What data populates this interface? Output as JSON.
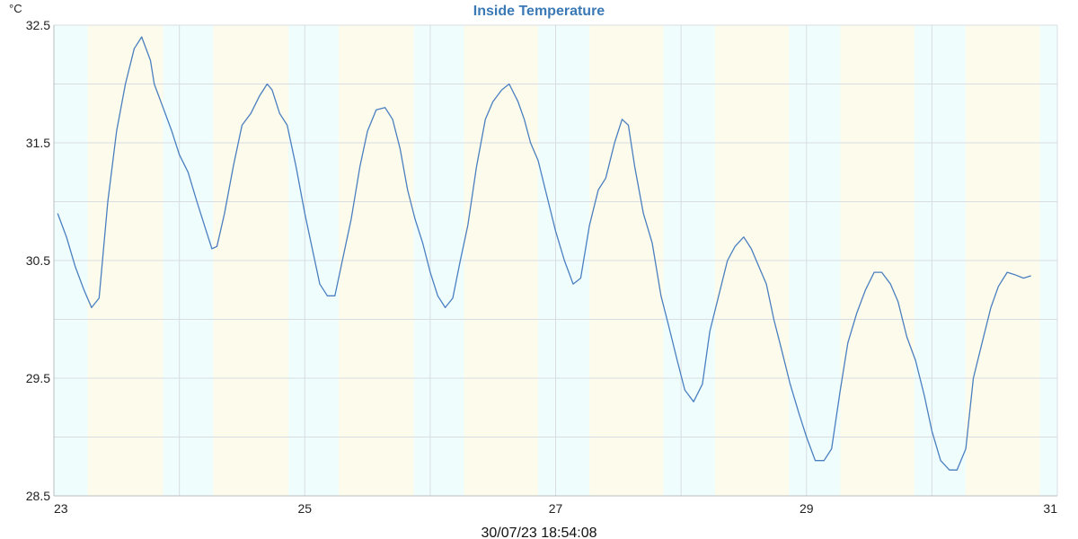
{
  "chart_data": {
    "type": "line",
    "title": "Inside Temperature",
    "unit": "°C",
    "timestamp": "30/07/23 18:54:08",
    "xlim": [
      23,
      31
    ],
    "ylim": [
      28.5,
      32.5
    ],
    "x_ticks": [
      23,
      25,
      27,
      29,
      31
    ],
    "x_tick_labels": [
      "23",
      "25",
      "27",
      "29",
      "31"
    ],
    "y_ticks": [
      28.5,
      29.5,
      30.5,
      31.5,
      32.5
    ],
    "y_tick_labels": [
      "28.5",
      "29.5",
      "30.5",
      "31.5",
      "32.5"
    ],
    "grid": true,
    "day_night_bands": [
      {
        "from": 23.0,
        "to": 23.27,
        "period": "night"
      },
      {
        "from": 23.27,
        "to": 23.87,
        "period": "day"
      },
      {
        "from": 23.87,
        "to": 24.27,
        "period": "night"
      },
      {
        "from": 24.27,
        "to": 24.87,
        "period": "day"
      },
      {
        "from": 24.87,
        "to": 25.27,
        "period": "night"
      },
      {
        "from": 25.27,
        "to": 25.87,
        "period": "day"
      },
      {
        "from": 25.87,
        "to": 26.27,
        "period": "night"
      },
      {
        "from": 26.27,
        "to": 26.86,
        "period": "day"
      },
      {
        "from": 26.86,
        "to": 27.27,
        "period": "night"
      },
      {
        "from": 27.27,
        "to": 27.86,
        "period": "day"
      },
      {
        "from": 27.86,
        "to": 28.27,
        "period": "night"
      },
      {
        "from": 28.27,
        "to": 28.86,
        "period": "day"
      },
      {
        "from": 28.86,
        "to": 29.27,
        "period": "night"
      },
      {
        "from": 29.27,
        "to": 29.86,
        "period": "day"
      },
      {
        "from": 29.86,
        "to": 30.27,
        "period": "night"
      },
      {
        "from": 30.27,
        "to": 30.86,
        "period": "day"
      },
      {
        "from": 30.86,
        "to": 31.0,
        "period": "night"
      }
    ],
    "colors": {
      "line": "#4a7fc0",
      "title": "#3a79b5",
      "day_band": "#fdfbeb",
      "night_band": "#effdfd",
      "grid": "#d9dde2"
    },
    "series": [
      {
        "x": [
          23.03,
          23.1,
          23.17,
          23.24,
          23.3,
          23.36,
          23.43,
          23.5,
          23.57,
          23.64,
          23.7,
          23.77,
          23.8,
          23.87,
          23.94,
          24.0,
          24.07,
          24.14,
          24.2,
          24.26,
          24.3,
          24.36,
          24.43,
          24.5,
          24.57,
          24.64,
          24.7,
          24.74,
          24.8,
          24.86,
          24.93,
          25.0,
          25.06,
          25.12,
          25.18,
          25.24,
          25.3,
          25.37,
          25.44,
          25.5,
          25.57,
          25.64,
          25.7,
          25.76,
          25.82,
          25.88,
          25.94,
          26.0,
          26.06,
          26.12,
          26.18,
          26.24,
          26.3,
          26.37,
          26.44,
          26.5,
          26.57,
          26.63,
          26.7,
          26.75,
          26.8,
          26.86,
          26.93,
          27.0,
          27.07,
          27.14,
          27.2,
          27.27,
          27.34,
          27.4,
          27.47,
          27.53,
          27.58,
          27.63,
          27.7,
          27.77,
          27.84,
          27.9,
          27.97,
          28.03,
          28.1,
          28.17,
          28.23,
          28.3,
          28.37,
          28.43,
          28.5,
          28.56,
          28.62,
          28.68,
          28.74,
          28.8,
          28.87,
          28.94,
          29.0,
          29.07,
          29.14,
          29.2,
          29.27,
          29.33,
          29.4,
          29.47,
          29.54,
          29.6,
          29.67,
          29.73,
          29.8,
          29.87,
          29.94,
          30.0,
          30.07,
          30.14,
          30.2,
          30.27,
          30.33,
          30.4,
          30.47,
          30.53,
          30.6,
          30.66,
          30.73,
          30.79
        ],
        "y": [
          30.9,
          30.7,
          30.45,
          30.25,
          30.1,
          30.18,
          31.0,
          31.6,
          32.0,
          32.3,
          32.4,
          32.2,
          32.0,
          31.8,
          31.6,
          31.4,
          31.25,
          31.0,
          30.8,
          30.6,
          30.62,
          30.9,
          31.3,
          31.65,
          31.75,
          31.9,
          32.0,
          31.95,
          31.75,
          31.65,
          31.3,
          30.9,
          30.6,
          30.3,
          30.2,
          30.2,
          30.5,
          30.85,
          31.3,
          31.6,
          31.78,
          31.8,
          31.7,
          31.45,
          31.1,
          30.85,
          30.65,
          30.4,
          30.2,
          30.1,
          30.18,
          30.5,
          30.8,
          31.3,
          31.7,
          31.85,
          31.95,
          32.0,
          31.85,
          31.7,
          31.5,
          31.35,
          31.05,
          30.75,
          30.5,
          30.3,
          30.35,
          30.8,
          31.1,
          31.2,
          31.5,
          31.7,
          31.65,
          31.3,
          30.9,
          30.65,
          30.2,
          29.95,
          29.65,
          29.4,
          29.3,
          29.45,
          29.9,
          30.2,
          30.5,
          30.62,
          30.7,
          30.6,
          30.45,
          30.3,
          30.0,
          29.75,
          29.45,
          29.2,
          29.0,
          28.8,
          28.8,
          28.9,
          29.4,
          29.8,
          30.05,
          30.25,
          30.4,
          30.4,
          30.3,
          30.15,
          29.85,
          29.65,
          29.35,
          29.05,
          28.8,
          28.72,
          28.72,
          28.9,
          29.5,
          29.8,
          30.1,
          30.28,
          30.4,
          30.38,
          30.35,
          30.37
        ]
      }
    ]
  }
}
